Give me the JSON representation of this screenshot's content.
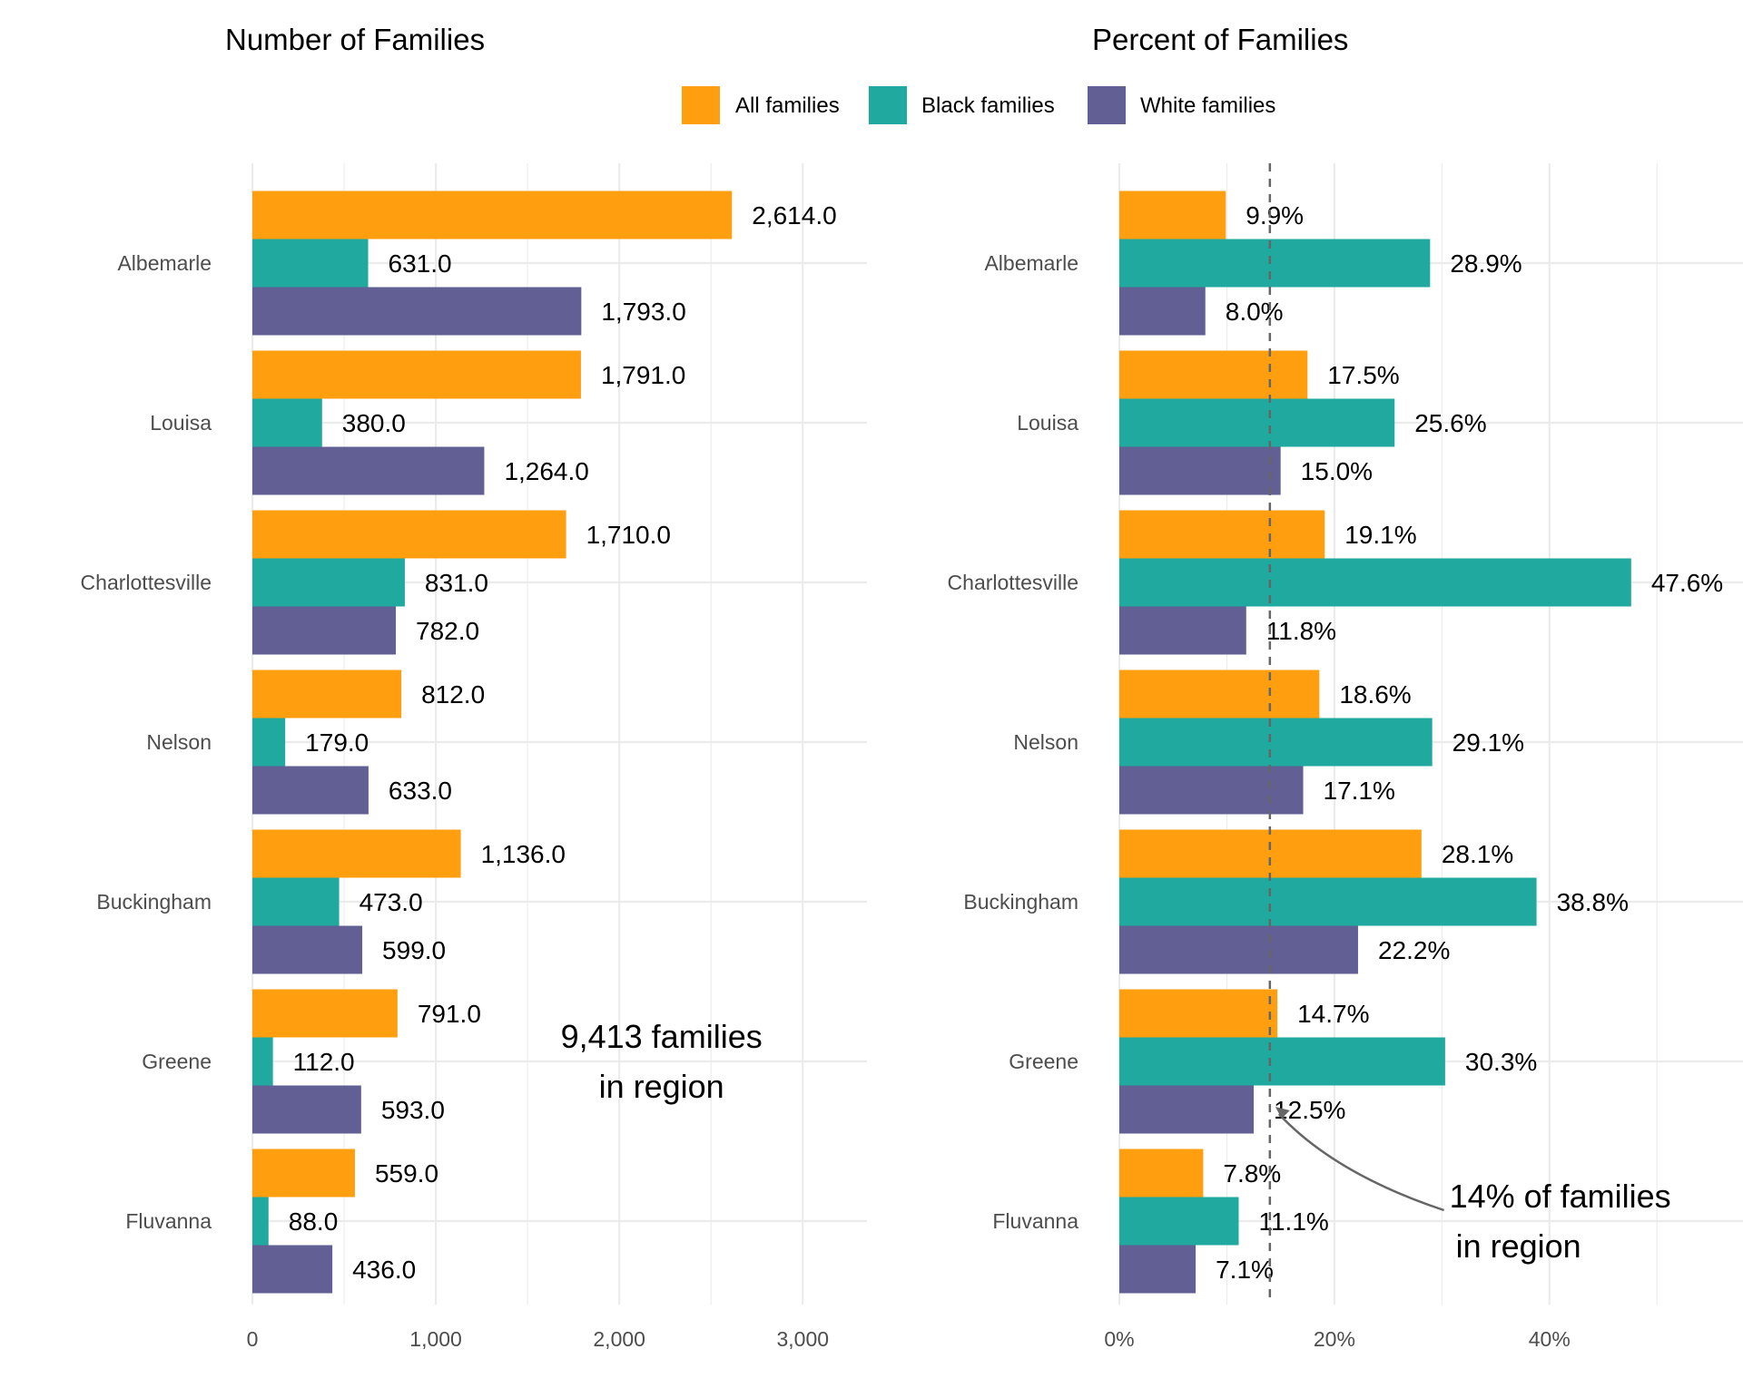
{
  "colors": {
    "all": "#FF9F0F",
    "black": "#20A99E",
    "white": "#625F94",
    "grid": "#EBEBEB",
    "reference": "#666666"
  },
  "legend": {
    "position": "top",
    "entries": [
      {
        "key": "all",
        "label": "All families"
      },
      {
        "key": "black",
        "label": "Black families"
      },
      {
        "key": "white",
        "label": "White families"
      }
    ]
  },
  "chart_data": [
    {
      "type": "bar",
      "orientation": "horizontal",
      "title": "Number of Families",
      "categories": [
        "Albemarle",
        "Louisa",
        "Charlottesville",
        "Nelson",
        "Buckingham",
        "Greene",
        "Fluvanna"
      ],
      "series": [
        {
          "key": "all",
          "name": "All families",
          "values": [
            2614,
            1791,
            1710,
            812,
            1136,
            791,
            559
          ],
          "labels": [
            "2,614.0",
            "1,791.0",
            "1,710.0",
            "812.0",
            "1,136.0",
            "791.0",
            "559.0"
          ]
        },
        {
          "key": "black",
          "name": "Black families",
          "values": [
            631,
            380,
            831,
            179,
            473,
            112,
            88
          ],
          "labels": [
            "631.0",
            "380.0",
            "831.0",
            "179.0",
            "473.0",
            "112.0",
            "88.0"
          ]
        },
        {
          "key": "white",
          "name": "White families",
          "values": [
            1793,
            1264,
            782,
            633,
            599,
            593,
            436
          ],
          "labels": [
            "1,793.0",
            "1,264.0",
            "782.0",
            "633.0",
            "599.0",
            "593.0",
            "436.0"
          ]
        }
      ],
      "xlim": [
        0,
        3350
      ],
      "ticks": [
        0,
        1000,
        2000,
        3000
      ],
      "tick_labels": [
        "0",
        "1,000",
        "2,000",
        "3,000"
      ],
      "minor_ticks": [
        500,
        1500,
        2500
      ],
      "annotation": {
        "lines": [
          "9,413 families",
          "in region"
        ],
        "x": 2230,
        "y_category": "Greene"
      }
    },
    {
      "type": "bar",
      "orientation": "horizontal",
      "title": "Percent of Families",
      "categories": [
        "Albemarle",
        "Louisa",
        "Charlottesville",
        "Nelson",
        "Buckingham",
        "Greene",
        "Fluvanna"
      ],
      "series": [
        {
          "key": "all",
          "name": "All families",
          "values": [
            9.9,
            17.5,
            19.1,
            18.6,
            28.1,
            14.7,
            7.8
          ],
          "labels": [
            "9.9%",
            "17.5%",
            "19.1%",
            "18.6%",
            "28.1%",
            "14.7%",
            "7.8%"
          ]
        },
        {
          "key": "black",
          "name": "Black families",
          "values": [
            28.9,
            25.6,
            47.6,
            29.1,
            38.8,
            30.3,
            11.1
          ],
          "labels": [
            "28.9%",
            "25.6%",
            "47.6%",
            "29.1%",
            "38.8%",
            "30.3%",
            "11.1%"
          ]
        },
        {
          "key": "white",
          "name": "White families",
          "values": [
            8.0,
            15.0,
            11.8,
            17.1,
            22.2,
            12.5,
            7.1
          ],
          "labels": [
            "8.0%",
            "15.0%",
            "11.8%",
            "17.1%",
            "22.2%",
            "12.5%",
            "7.1%"
          ]
        }
      ],
      "xlim": [
        0,
        58
      ],
      "ticks": [
        0,
        20,
        40
      ],
      "tick_labels": [
        "0%",
        "20%",
        "40%"
      ],
      "minor_ticks": [
        10,
        30,
        50
      ],
      "reference_line": {
        "value": 14,
        "style": "dashed"
      },
      "annotation": {
        "lines": [
          "14% of families",
          "in region"
        ],
        "x": 41,
        "y_category": "Fluvanna"
      }
    }
  ]
}
